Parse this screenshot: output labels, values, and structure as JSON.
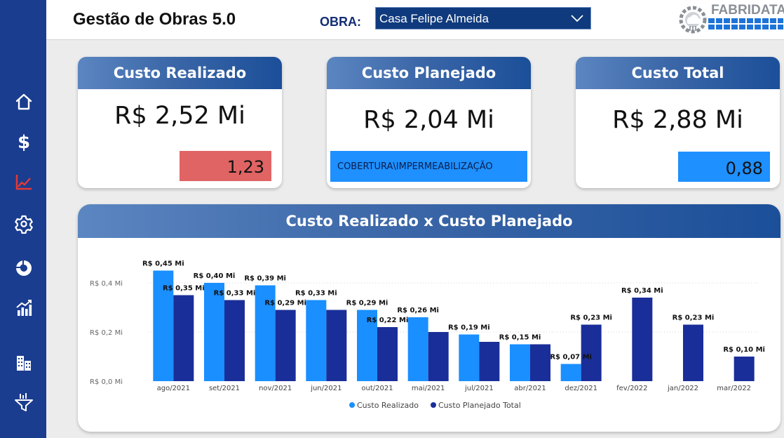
{
  "header": {
    "title": "Gestão de Obras 5.0",
    "obra_label": "OBRA:",
    "obra_selected": "Casa Felipe Almeida",
    "logo_text": "FABRIDATA"
  },
  "sidebar": {
    "items": [
      {
        "icon": "home-icon"
      },
      {
        "icon": "dollar-icon"
      },
      {
        "icon": "line-chart-icon",
        "active": true
      },
      {
        "icon": "gear-icon"
      },
      {
        "icon": "donut-chart-icon"
      },
      {
        "icon": "bar-chart-icon"
      },
      {
        "icon": "buildings-icon"
      },
      {
        "icon": "funnel-icon"
      }
    ]
  },
  "kpis": {
    "realizado": {
      "title": "Custo Realizado",
      "value": "R$ 2,52 Mi",
      "badge": "1,23",
      "badge_color": "#e06464"
    },
    "planejado": {
      "title": "Custo Planejado",
      "value": "R$ 2,04 Mi",
      "badge": "COBERTURA\\IMPERMEABILIZAÇÃO",
      "badge_color": "#1e90ff"
    },
    "total": {
      "title": "Custo Total",
      "value": "R$ 2,88 Mi",
      "badge": "0,88",
      "badge_color": "#1e90ff"
    }
  },
  "chart_data": {
    "type": "bar",
    "title": "Custo Realizado x Custo Planejado",
    "categories": [
      "ago/2021",
      "set/2021",
      "nov/2021",
      "jun/2021",
      "out/2021",
      "mai/2021",
      "jul/2021",
      "abr/2021",
      "dez/2021",
      "fev/2022",
      "jan/2022",
      "mar/2022"
    ],
    "series": [
      {
        "name": "Custo Realizado",
        "color": "#1a8fff",
        "values": [
          0.45,
          0.4,
          0.39,
          0.33,
          0.29,
          0.26,
          0.19,
          0.15,
          0.07,
          null,
          null,
          null
        ],
        "labels": [
          "R$ 0,45 Mi",
          "R$ 0,40 Mi",
          "R$ 0,39 Mi",
          "R$ 0,33 Mi",
          "R$ 0,29 Mi",
          "R$ 0,26 Mi",
          "R$ 0,19 Mi",
          "R$ 0,15 Mi",
          "R$ 0,07 Mi",
          null,
          null,
          null
        ]
      },
      {
        "name": "Custo Planejado Total",
        "color": "#1a2e99",
        "values": [
          0.35,
          0.33,
          0.29,
          0.29,
          0.22,
          0.2,
          0.16,
          0.15,
          0.23,
          0.34,
          0.23,
          0.1
        ],
        "labels": [
          "R$ 0,35 Mi",
          "R$ 0,33 Mi",
          "R$ 0,29 Mi",
          null,
          "R$ 0,22 Mi",
          null,
          null,
          null,
          "R$ 0,23 Mi",
          "R$ 0,34 Mi",
          "R$ 0,23 Mi",
          "R$ 0,10 Mi"
        ]
      }
    ],
    "yticks": [
      {
        "value": 0.0,
        "label": "R$ 0,0 Mi"
      },
      {
        "value": 0.2,
        "label": "R$ 0,2 Mi"
      },
      {
        "value": 0.4,
        "label": "R$ 0,4 Mi"
      }
    ],
    "ylim": [
      0,
      0.5
    ],
    "grid": true,
    "legend_position": "bottom-center"
  }
}
